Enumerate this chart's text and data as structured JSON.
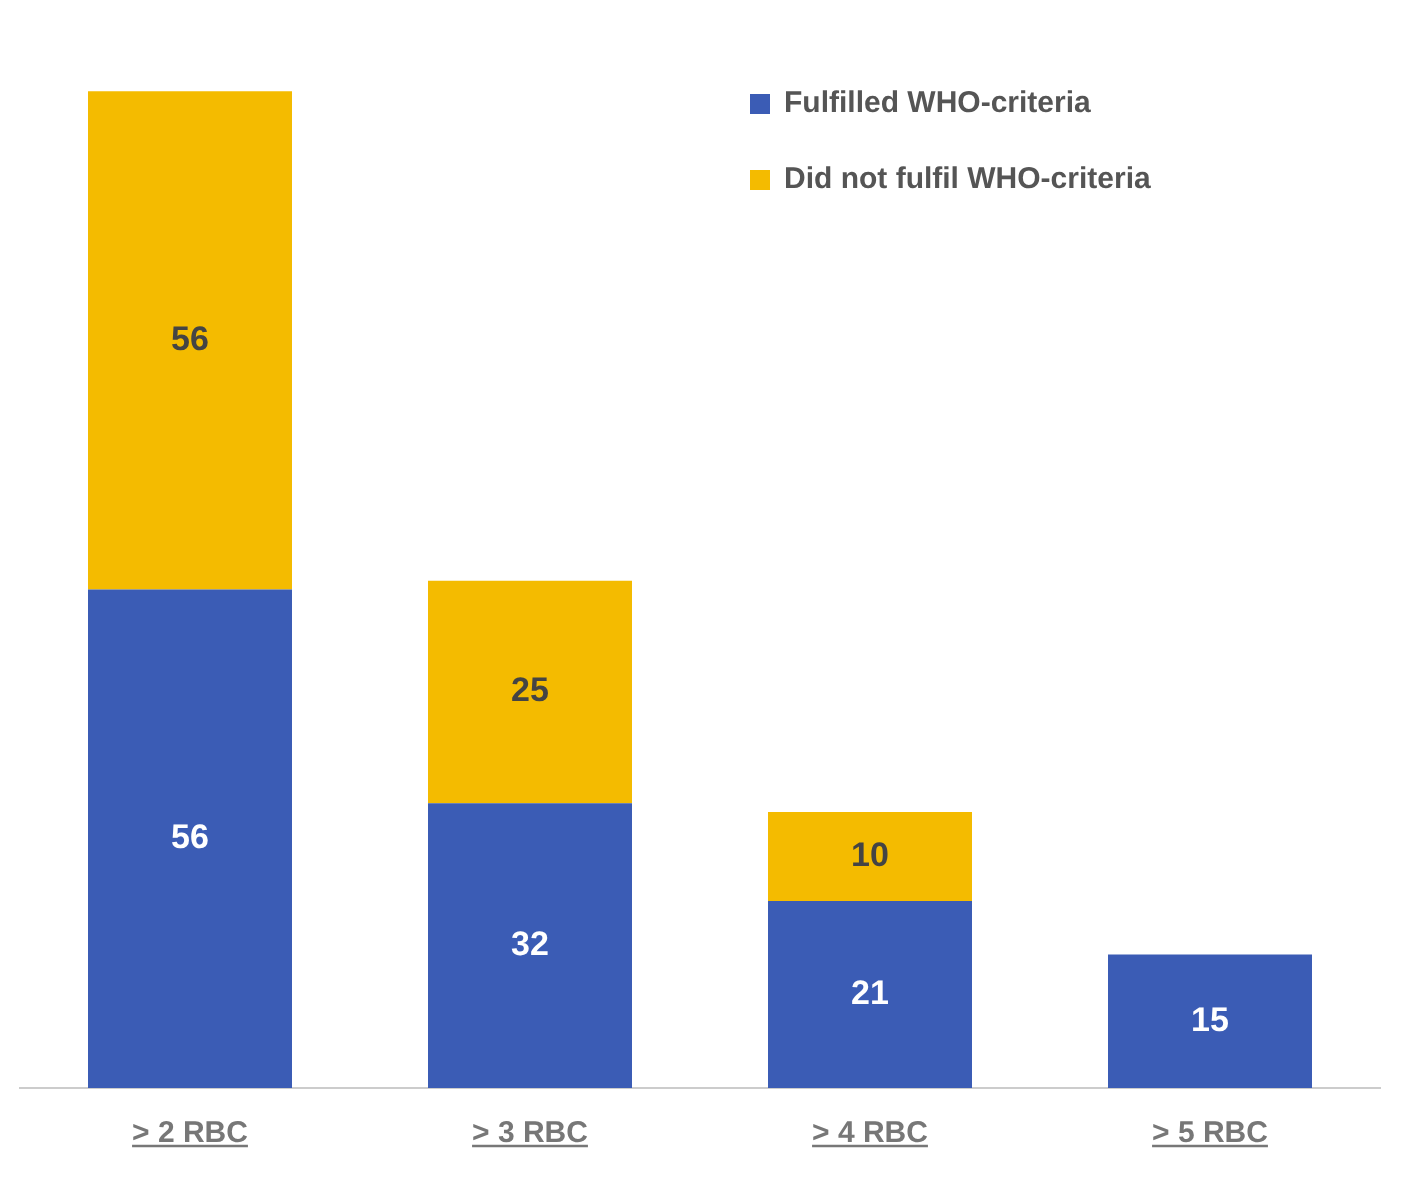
{
  "chart_data": {
    "type": "bar",
    "stacked": true,
    "data_labels": true,
    "legend": "top right",
    "grid": false,
    "categories": [
      "> 2 RBC",
      "> 3 RBC",
      "> 4 RBC",
      "> 5 RBC"
    ],
    "series": [
      {
        "name": "Fulfilled WHO-criteria",
        "color": "#3b5cb5",
        "values": [
          56,
          32,
          21,
          15
        ]
      },
      {
        "name": "Did not fulfil WHO-criteria",
        "color": "#f4bb00",
        "values": [
          56,
          25,
          10,
          null
        ]
      }
    ]
  }
}
